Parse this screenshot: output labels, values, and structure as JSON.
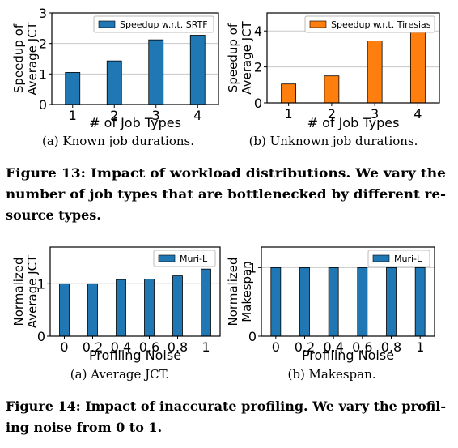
{
  "figure13": {
    "caption_lines": [
      "Figure 13: Impact of workload distributions. We vary the",
      "number of job types that are bottlenecked by different re-",
      "source types."
    ],
    "panels": [
      {
        "sub_caption": "(a) Known job durations."
      },
      {
        "sub_caption": "(b) Unknown job durations."
      }
    ]
  },
  "figure14": {
    "caption_lines": [
      "Figure 14: Impact of inaccurate profiling. We vary the profil-",
      "ing noise from 0 to 1."
    ],
    "panels": [
      {
        "sub_caption": "(a) Average JCT."
      },
      {
        "sub_caption": "(b) Makespan."
      }
    ]
  },
  "colors": {
    "blue": "#1f77b4",
    "orange": "#ff7f0e",
    "grid": "#c8c8c8"
  },
  "chart_data": [
    {
      "type": "bar",
      "categories": [
        "1",
        "2",
        "3",
        "4"
      ],
      "series": [
        {
          "name": "Speedup w.r.t. SRTF",
          "values": [
            1.05,
            1.43,
            2.12,
            2.27
          ]
        }
      ],
      "xlabel": "# of Job Types",
      "ylabel_lines": [
        "Speedup of",
        "Average JCT"
      ],
      "ylim": [
        0,
        3
      ],
      "yticks": [
        0,
        1,
        2,
        3
      ],
      "grid": "horizontal",
      "legend": "top-right",
      "color": "#1f77b4"
    },
    {
      "type": "bar",
      "categories": [
        "1",
        "2",
        "3",
        "4"
      ],
      "series": [
        {
          "name": "Speedup w.r.t. Tiresias",
          "values": [
            1.05,
            1.5,
            3.45,
            3.95
          ]
        }
      ],
      "xlabel": "# of Job Types",
      "ylabel_lines": [
        "Speedup of",
        "Average JCT"
      ],
      "ylim": [
        0,
        5
      ],
      "yticks": [
        0,
        2,
        4
      ],
      "grid": "horizontal",
      "legend": "top-right",
      "color": "#ff7f0e"
    },
    {
      "type": "bar",
      "categories": [
        "0",
        "0.2",
        "0.4",
        "0.6",
        "0.8",
        "1"
      ],
      "series": [
        {
          "name": "Muri-L",
          "values": [
            1.0,
            1.0,
            1.08,
            1.09,
            1.15,
            1.28
          ]
        }
      ],
      "xlabel": "Profiling Noise",
      "ylabel_lines": [
        "Normalized",
        "Average JCT"
      ],
      "ylim": [
        0,
        1.7
      ],
      "yticks": [
        0,
        1
      ],
      "grid": "horizontal",
      "legend": "top-right",
      "color": "#1f77b4"
    },
    {
      "type": "bar",
      "categories": [
        "0",
        "0.2",
        "0.4",
        "0.6",
        "0.8",
        "1"
      ],
      "series": [
        {
          "name": "Muri-L",
          "values": [
            1,
            1,
            1,
            1,
            1,
            1
          ]
        }
      ],
      "xlabel": "Profiling Noise",
      "ylabel_lines": [
        "Normalized",
        "Makespan"
      ],
      "ylim": [
        0,
        1.3
      ],
      "yticks": [
        0,
        1
      ],
      "grid": "horizontal",
      "legend": "top-right",
      "color": "#1f77b4"
    }
  ]
}
